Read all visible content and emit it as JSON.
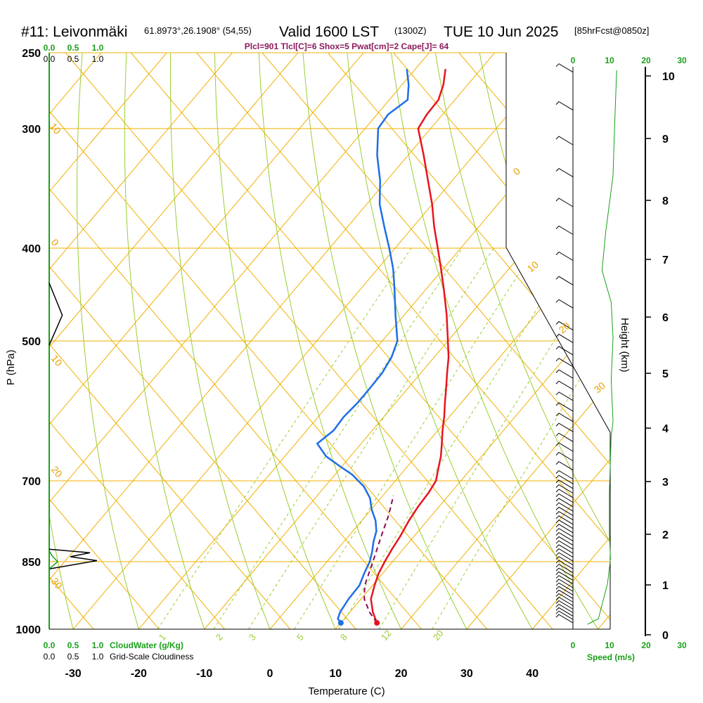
{
  "header": {
    "station": "#11: Leivonmäki",
    "location": "61.8973°,26.1908° (54,55)",
    "valid": "Valid 1600 LST",
    "utc": "(1300Z)",
    "date": "TUE 10 Jun 2025",
    "forecast": "[85hrFcst@0850z]",
    "params": "Plcl=901 Tlcl[C]=6 Shox=5 Pwat[cm]=2 Cape[J]= 64"
  },
  "labels": {
    "y_axis": "P (hPa)",
    "x_axis": "Temperature (C)",
    "height_axis": "Height (km)",
    "cloudwater": "CloudWater (g/Kg)",
    "cloudiness": "Grid-Scale Cloudiness",
    "speed": "Speed (m/s)"
  },
  "cloud_ticks": [
    "0.0",
    "0.5",
    "1.0"
  ],
  "speed_ticks": [
    "0",
    "10",
    "20",
    "30"
  ],
  "colors": {
    "temperature": "#e8141e",
    "dewpoint": "#1e6ee8",
    "parcel": "#8b0a50",
    "isotherm": "#f0b000",
    "dry_adiabat": "#9acd32",
    "mixing_ratio": "#9acd32",
    "cloudwater": "#1aa01a",
    "cloudiness": "#000000",
    "wind_speed": "#1aa01a"
  },
  "chart_data": {
    "type": "skew-t",
    "xlabel": "Temperature (C)",
    "ylabel": "P (hPa)",
    "x_ticks": [
      -30,
      -20,
      -10,
      0,
      10,
      20,
      30,
      40
    ],
    "pressure_ticks": [
      250,
      300,
      400,
      500,
      700,
      850,
      1000
    ],
    "height_ticks": [
      0,
      1,
      2,
      3,
      4,
      5,
      6,
      7,
      8,
      9,
      10
    ],
    "isotherm_labels": [
      {
        "text": "10",
        "value": 10
      },
      {
        "text": "0",
        "value": 0
      },
      {
        "text": "-10",
        "value": -10,
        "shown": "10"
      },
      {
        "text": "-20",
        "value": -20,
        "shown": "20"
      },
      {
        "text": "-30",
        "value": -30,
        "shown": "30"
      }
    ],
    "theta_labels": [
      "0",
      "10",
      "20",
      "30"
    ],
    "mixing_ratio_labels": [
      "1",
      "2",
      "3",
      "5",
      "8",
      "12",
      "20"
    ],
    "series": [
      {
        "name": "Temperature",
        "points": [
          {
            "p": 985,
            "t": 15.5
          },
          {
            "p": 960,
            "t": 13.5
          },
          {
            "p": 930,
            "t": 11.5
          },
          {
            "p": 900,
            "t": 10.3
          },
          {
            "p": 875,
            "t": 9.4
          },
          {
            "p": 850,
            "t": 8.8
          },
          {
            "p": 825,
            "t": 8.3
          },
          {
            "p": 800,
            "t": 7.9
          },
          {
            "p": 770,
            "t": 7.2
          },
          {
            "p": 745,
            "t": 6.8
          },
          {
            "p": 720,
            "t": 6.6
          },
          {
            "p": 700,
            "t": 6.2
          },
          {
            "p": 680,
            "t": 5.0
          },
          {
            "p": 660,
            "t": 3.8
          },
          {
            "p": 640,
            "t": 2.3
          },
          {
            "p": 620,
            "t": 0.7
          },
          {
            "p": 600,
            "t": -0.8
          },
          {
            "p": 580,
            "t": -2.5
          },
          {
            "p": 560,
            "t": -4.2
          },
          {
            "p": 540,
            "t": -6.0
          },
          {
            "p": 520,
            "t": -7.8
          },
          {
            "p": 500,
            "t": -10.0
          },
          {
            "p": 470,
            "t": -13.5
          },
          {
            "p": 440,
            "t": -17.5
          },
          {
            "p": 420,
            "t": -20.4
          },
          {
            "p": 400,
            "t": -23.5
          },
          {
            "p": 380,
            "t": -26.8
          },
          {
            "p": 360,
            "t": -30.0
          },
          {
            "p": 340,
            "t": -33.7
          },
          {
            "p": 320,
            "t": -37.6
          },
          {
            "p": 300,
            "t": -41.9
          },
          {
            "p": 290,
            "t": -42.4
          },
          {
            "p": 280,
            "t": -42.5
          },
          {
            "p": 270,
            "t": -43.7
          },
          {
            "p": 260,
            "t": -45.4
          }
        ]
      },
      {
        "name": "Dewpoint",
        "points": [
          {
            "p": 985,
            "t": 10.0
          },
          {
            "p": 975,
            "t": 9.0
          },
          {
            "p": 960,
            "t": 8.5
          },
          {
            "p": 930,
            "t": 8.1
          },
          {
            "p": 900,
            "t": 8.0
          },
          {
            "p": 875,
            "t": 7.2
          },
          {
            "p": 850,
            "t": 6.5
          },
          {
            "p": 830,
            "t": 5.6
          },
          {
            "p": 810,
            "t": 4.5
          },
          {
            "p": 790,
            "t": 3.6
          },
          {
            "p": 770,
            "t": 2.1
          },
          {
            "p": 750,
            "t": 0.1
          },
          {
            "p": 730,
            "t": -1.6
          },
          {
            "p": 710,
            "t": -4.0
          },
          {
            "p": 690,
            "t": -7.3
          },
          {
            "p": 675,
            "t": -10.5
          },
          {
            "p": 660,
            "t": -13.7
          },
          {
            "p": 640,
            "t": -16.7
          },
          {
            "p": 620,
            "t": -15.9
          },
          {
            "p": 600,
            "t": -16.1
          },
          {
            "p": 580,
            "t": -15.8
          },
          {
            "p": 560,
            "t": -15.8
          },
          {
            "p": 540,
            "t": -15.9
          },
          {
            "p": 520,
            "t": -16.5
          },
          {
            "p": 500,
            "t": -17.7
          },
          {
            "p": 470,
            "t": -21.3
          },
          {
            "p": 440,
            "t": -25.0
          },
          {
            "p": 420,
            "t": -27.7
          },
          {
            "p": 400,
            "t": -30.9
          },
          {
            "p": 380,
            "t": -34.4
          },
          {
            "p": 360,
            "t": -38.0
          },
          {
            "p": 340,
            "t": -41.0
          },
          {
            "p": 320,
            "t": -44.7
          },
          {
            "p": 300,
            "t": -48.0
          },
          {
            "p": 290,
            "t": -48.3
          },
          {
            "p": 280,
            "t": -47.2
          },
          {
            "p": 270,
            "t": -49.0
          },
          {
            "p": 260,
            "t": -51.3
          }
        ]
      },
      {
        "name": "Parcel",
        "points": [
          {
            "p": 985,
            "t": 15.5
          },
          {
            "p": 960,
            "t": 13.0
          },
          {
            "p": 930,
            "t": 10.5
          },
          {
            "p": 900,
            "t": 8.8
          },
          {
            "p": 850,
            "t": 7.0
          },
          {
            "p": 800,
            "t": 5.0
          },
          {
            "p": 760,
            "t": 3.4
          },
          {
            "p": 725,
            "t": 1.6
          }
        ]
      }
    ],
    "surface_markers": [
      {
        "name": "Surface temperature",
        "p": 985,
        "t": 15.5
      },
      {
        "name": "Surface dewpoint",
        "p": 985,
        "t": 10.0
      }
    ],
    "wind_profile": [
      {
        "p": 985,
        "speed": 3,
        "dir": 150
      },
      {
        "p": 960,
        "speed": 6,
        "dir": 170
      },
      {
        "p": 930,
        "speed": 9,
        "dir": 190
      },
      {
        "p": 900,
        "speed": 10,
        "dir": 200
      },
      {
        "p": 850,
        "speed": 10,
        "dir": 205
      },
      {
        "p": 800,
        "speed": 10,
        "dir": 210
      },
      {
        "p": 750,
        "speed": 10,
        "dir": 215
      },
      {
        "p": 700,
        "speed": 10,
        "dir": 220
      },
      {
        "p": 650,
        "speed": 10,
        "dir": 225
      },
      {
        "p": 600,
        "speed": 10,
        "dir": 230
      },
      {
        "p": 550,
        "speed": 9,
        "dir": 235
      },
      {
        "p": 500,
        "speed": 8,
        "dir": 240
      },
      {
        "p": 450,
        "speed": 7,
        "dir": 245
      },
      {
        "p": 400,
        "speed": 7,
        "dir": 250
      },
      {
        "p": 350,
        "speed": 8,
        "dir": 255
      },
      {
        "p": 300,
        "speed": 8,
        "dir": 255
      },
      {
        "p": 270,
        "speed": 7,
        "dir": 250
      }
    ],
    "cloudiness_profile": [
      {
        "p": 860,
        "value": 0.0
      },
      {
        "p": 850,
        "value": 0.35
      },
      {
        "p": 845,
        "value": 0.7
      },
      {
        "p": 840,
        "value": 0.3
      },
      {
        "p": 835,
        "value": 0.0
      }
    ],
    "cloudiness_upper": [
      {
        "p": 435,
        "value": 0.0
      },
      {
        "p": 470,
        "value": 0.3
      },
      {
        "p": 505,
        "value": 0.0
      }
    ]
  }
}
